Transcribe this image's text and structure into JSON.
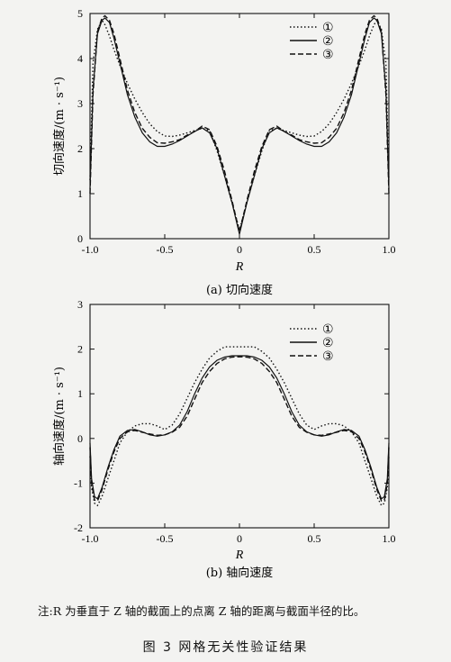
{
  "chart_data": [
    {
      "type": "line",
      "subcaption": "(a) 切向速度",
      "xlabel": "R",
      "ylabel": "切向速度/(m · s⁻¹)",
      "xlim": [
        -1.0,
        1.0
      ],
      "ylim": [
        0,
        5
      ],
      "xticks": [
        "-1.0",
        "-0.5",
        "0",
        "0.5",
        "1.0"
      ],
      "yticks": [
        "0",
        "1",
        "2",
        "3",
        "4",
        "5"
      ],
      "legend_position": "top-right",
      "series": [
        {
          "name": "①",
          "style": "dotted",
          "x": [
            -1.0,
            -0.98,
            -0.95,
            -0.92,
            -0.9,
            -0.87,
            -0.84,
            -0.8,
            -0.75,
            -0.7,
            -0.65,
            -0.6,
            -0.55,
            -0.5,
            -0.45,
            -0.4,
            -0.35,
            -0.3,
            -0.25,
            -0.2,
            -0.15,
            -0.1,
            -0.05,
            0,
            0.05,
            0.1,
            0.15,
            0.2,
            0.25,
            0.3,
            0.35,
            0.4,
            0.45,
            0.5,
            0.55,
            0.6,
            0.65,
            0.7,
            0.75,
            0.8,
            0.84,
            0.87,
            0.9,
            0.92,
            0.95,
            0.98,
            1.0
          ],
          "y": [
            1.3,
            3.9,
            4.65,
            4.85,
            4.75,
            4.5,
            4.2,
            3.85,
            3.45,
            3.1,
            2.8,
            2.55,
            2.38,
            2.28,
            2.27,
            2.3,
            2.35,
            2.4,
            2.45,
            2.4,
            1.95,
            1.4,
            0.8,
            0.2,
            0.8,
            1.4,
            1.95,
            2.4,
            2.45,
            2.4,
            2.35,
            2.3,
            2.27,
            2.28,
            2.38,
            2.55,
            2.8,
            3.1,
            3.45,
            3.85,
            4.2,
            4.5,
            4.75,
            4.85,
            4.65,
            3.9,
            1.3
          ]
        },
        {
          "name": "②",
          "style": "solid",
          "x": [
            -1.0,
            -0.98,
            -0.95,
            -0.92,
            -0.9,
            -0.87,
            -0.84,
            -0.8,
            -0.75,
            -0.7,
            -0.65,
            -0.6,
            -0.55,
            -0.5,
            -0.45,
            -0.4,
            -0.35,
            -0.3,
            -0.25,
            -0.2,
            -0.15,
            -0.1,
            -0.05,
            0,
            0.05,
            0.1,
            0.15,
            0.2,
            0.25,
            0.3,
            0.35,
            0.4,
            0.45,
            0.5,
            0.55,
            0.6,
            0.65,
            0.7,
            0.75,
            0.8,
            0.84,
            0.87,
            0.9,
            0.92,
            0.95,
            0.98,
            1.0
          ],
          "y": [
            1.1,
            3.3,
            4.55,
            4.85,
            4.9,
            4.8,
            4.45,
            3.9,
            3.2,
            2.7,
            2.35,
            2.15,
            2.05,
            2.05,
            2.1,
            2.18,
            2.28,
            2.38,
            2.46,
            2.35,
            2.0,
            1.4,
            0.8,
            0.1,
            0.8,
            1.4,
            2.0,
            2.35,
            2.46,
            2.38,
            2.28,
            2.18,
            2.1,
            2.05,
            2.05,
            2.15,
            2.35,
            2.7,
            3.2,
            3.9,
            4.45,
            4.8,
            4.9,
            4.85,
            4.55,
            3.3,
            1.1
          ]
        },
        {
          "name": "③",
          "style": "dashed",
          "x": [
            -1.0,
            -0.98,
            -0.95,
            -0.92,
            -0.9,
            -0.87,
            -0.84,
            -0.8,
            -0.75,
            -0.7,
            -0.65,
            -0.6,
            -0.55,
            -0.5,
            -0.45,
            -0.4,
            -0.35,
            -0.3,
            -0.25,
            -0.2,
            -0.15,
            -0.1,
            -0.05,
            0,
            0.05,
            0.1,
            0.15,
            0.2,
            0.25,
            0.3,
            0.35,
            0.4,
            0.45,
            0.5,
            0.55,
            0.6,
            0.65,
            0.7,
            0.75,
            0.8,
            0.84,
            0.87,
            0.9,
            0.92,
            0.95,
            0.98,
            1.0
          ],
          "y": [
            1.0,
            3.2,
            4.6,
            4.9,
            4.95,
            4.85,
            4.55,
            4.0,
            3.3,
            2.8,
            2.45,
            2.25,
            2.13,
            2.12,
            2.15,
            2.2,
            2.3,
            2.38,
            2.5,
            2.42,
            2.05,
            1.5,
            0.85,
            0.15,
            0.85,
            1.5,
            2.05,
            2.42,
            2.5,
            2.38,
            2.3,
            2.2,
            2.15,
            2.12,
            2.13,
            2.25,
            2.45,
            2.8,
            3.3,
            4.0,
            4.55,
            4.85,
            4.95,
            4.9,
            4.6,
            3.2,
            1.0
          ]
        }
      ]
    },
    {
      "type": "line",
      "subcaption": "(b) 轴向速度",
      "xlabel": "R",
      "ylabel": "轴向速度/(m · s⁻¹)",
      "xlim": [
        -1.0,
        1.0
      ],
      "ylim": [
        -2,
        3
      ],
      "xticks": [
        "-1.0",
        "-0.5",
        "0",
        "0.5",
        "1.0"
      ],
      "yticks": [
        "-2",
        "-1",
        "0",
        "1",
        "2",
        "3"
      ],
      "legend_position": "top-right",
      "series": [
        {
          "name": "①",
          "style": "dotted",
          "x": [
            -1.0,
            -0.99,
            -0.97,
            -0.95,
            -0.92,
            -0.88,
            -0.84,
            -0.8,
            -0.75,
            -0.7,
            -0.65,
            -0.6,
            -0.55,
            -0.5,
            -0.45,
            -0.4,
            -0.35,
            -0.3,
            -0.25,
            -0.2,
            -0.15,
            -0.1,
            -0.05,
            0,
            0.05,
            0.1,
            0.15,
            0.2,
            0.25,
            0.3,
            0.35,
            0.4,
            0.45,
            0.5,
            0.55,
            0.6,
            0.65,
            0.7,
            0.75,
            0.8,
            0.84,
            0.88,
            0.92,
            0.95,
            0.97,
            0.99,
            1.0
          ],
          "y": [
            -0.4,
            -1.1,
            -1.45,
            -1.5,
            -1.3,
            -0.9,
            -0.5,
            -0.1,
            0.15,
            0.28,
            0.33,
            0.33,
            0.28,
            0.2,
            0.3,
            0.55,
            0.9,
            1.25,
            1.55,
            1.8,
            1.95,
            2.05,
            2.05,
            2.05,
            2.05,
            2.05,
            1.95,
            1.8,
            1.55,
            1.25,
            0.9,
            0.55,
            0.3,
            0.2,
            0.28,
            0.33,
            0.33,
            0.28,
            0.15,
            -0.1,
            -0.5,
            -0.9,
            -1.3,
            -1.5,
            -1.45,
            -1.1,
            -0.4
          ]
        },
        {
          "name": "②",
          "style": "solid",
          "x": [
            -1.0,
            -0.99,
            -0.97,
            -0.95,
            -0.92,
            -0.88,
            -0.84,
            -0.8,
            -0.75,
            -0.7,
            -0.65,
            -0.6,
            -0.55,
            -0.5,
            -0.45,
            -0.4,
            -0.35,
            -0.3,
            -0.25,
            -0.2,
            -0.15,
            -0.1,
            -0.05,
            0,
            0.05,
            0.1,
            0.15,
            0.2,
            0.25,
            0.3,
            0.35,
            0.4,
            0.45,
            0.5,
            0.55,
            0.6,
            0.65,
            0.7,
            0.75,
            0.8,
            0.84,
            0.88,
            0.92,
            0.95,
            0.97,
            0.99,
            1.0
          ],
          "y": [
            -0.1,
            -0.9,
            -1.3,
            -1.35,
            -1.1,
            -0.65,
            -0.25,
            0.05,
            0.18,
            0.2,
            0.15,
            0.08,
            0.05,
            0.08,
            0.15,
            0.3,
            0.6,
            1.0,
            1.35,
            1.6,
            1.75,
            1.82,
            1.85,
            1.85,
            1.85,
            1.82,
            1.75,
            1.6,
            1.35,
            1.0,
            0.6,
            0.3,
            0.15,
            0.08,
            0.05,
            0.08,
            0.15,
            0.2,
            0.18,
            0.05,
            -0.25,
            -0.65,
            -1.1,
            -1.35,
            -1.3,
            -0.9,
            -0.1
          ]
        },
        {
          "name": "③",
          "style": "dashed",
          "x": [
            -1.0,
            -0.99,
            -0.97,
            -0.95,
            -0.92,
            -0.88,
            -0.84,
            -0.8,
            -0.75,
            -0.7,
            -0.65,
            -0.6,
            -0.55,
            -0.5,
            -0.45,
            -0.4,
            -0.35,
            -0.3,
            -0.25,
            -0.2,
            -0.15,
            -0.1,
            -0.05,
            0,
            0.05,
            0.1,
            0.15,
            0.2,
            0.25,
            0.3,
            0.35,
            0.4,
            0.45,
            0.5,
            0.55,
            0.6,
            0.65,
            0.7,
            0.75,
            0.8,
            0.84,
            0.88,
            0.92,
            0.95,
            0.97,
            0.99,
            1.0
          ],
          "y": [
            -0.2,
            -1.0,
            -1.38,
            -1.4,
            -1.15,
            -0.7,
            -0.3,
            0.0,
            0.15,
            0.18,
            0.14,
            0.1,
            0.07,
            0.08,
            0.14,
            0.25,
            0.5,
            0.88,
            1.25,
            1.5,
            1.68,
            1.78,
            1.82,
            1.83,
            1.82,
            1.78,
            1.68,
            1.5,
            1.25,
            0.88,
            0.5,
            0.25,
            0.14,
            0.08,
            0.07,
            0.1,
            0.14,
            0.18,
            0.15,
            0.0,
            -0.3,
            -0.7,
            -1.15,
            -1.4,
            -1.38,
            -1.0,
            -0.2
          ]
        }
      ]
    }
  ],
  "note": "注:R 为垂直于 Z 轴的截面上的点离 Z 轴的距离与截面半径的比。",
  "figure_caption": "图 3    网格无关性验证结果"
}
